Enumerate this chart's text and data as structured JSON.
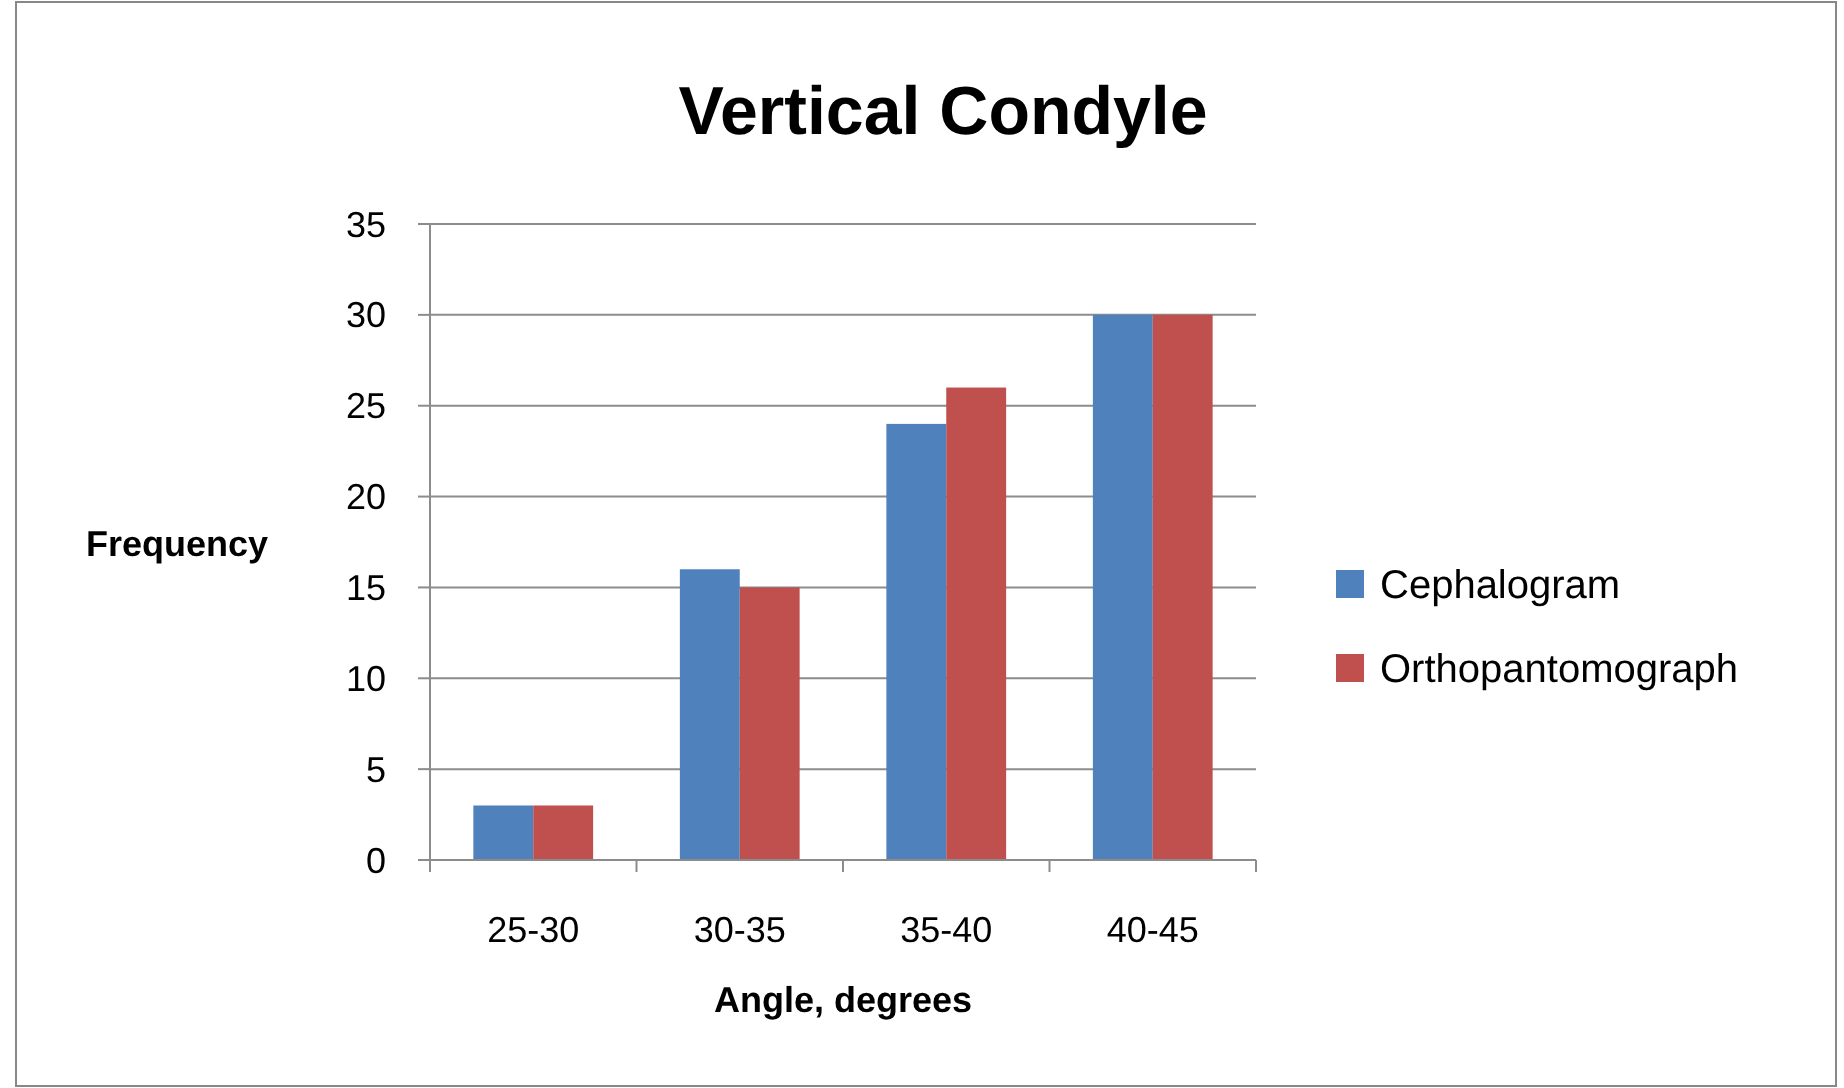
{
  "chart_data": {
    "type": "bar",
    "title": "Vertical Condyle",
    "xlabel": "Angle, degrees",
    "ylabel": "Frequency",
    "categories": [
      "25-30",
      "30-35",
      "35-40",
      "40-45"
    ],
    "series": [
      {
        "name": "Cephalogram",
        "color": "#4f81bd",
        "values": [
          3,
          16,
          24,
          30
        ]
      },
      {
        "name": "Orthopantomograph",
        "color": "#c0504d",
        "values": [
          3,
          15,
          26,
          30
        ]
      }
    ],
    "ylim": [
      0,
      35
    ],
    "yticks": [
      0,
      5,
      10,
      15,
      20,
      25,
      30,
      35
    ],
    "grid": "y",
    "legend": "right"
  }
}
